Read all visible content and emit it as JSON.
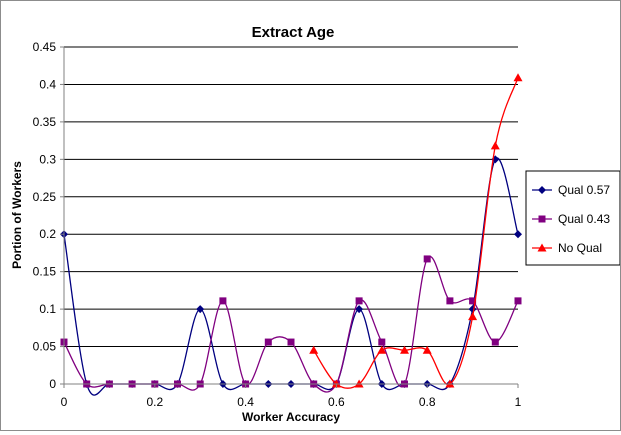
{
  "chart_data": {
    "type": "line",
    "title": "Extract Age",
    "xlabel": "Worker Accuracy",
    "ylabel": "Portion of Workers",
    "xlim": [
      0,
      1
    ],
    "ylim": [
      0,
      0.45
    ],
    "x_ticks": [
      0,
      0.2,
      0.4,
      0.6,
      0.8,
      1
    ],
    "y_ticks": [
      0,
      0.05,
      0.1,
      0.15,
      0.2,
      0.25,
      0.3,
      0.35,
      0.4,
      0.45
    ],
    "x_tick_labels": [
      "0",
      "0.2",
      "0.4",
      "0.6",
      "0.8",
      "1"
    ],
    "y_tick_labels": [
      "0",
      "0.05",
      "0.1",
      "0.15",
      "0.2",
      "0.25",
      "0.3",
      "0.35",
      "0.4",
      "0.45"
    ],
    "grid": "horizontal",
    "smooth": true,
    "legend_position": "right",
    "series": [
      {
        "name": "Qual 0.57",
        "color": "#000080",
        "marker": "diamond",
        "x": [
          0,
          0.05,
          0.1,
          0.15,
          0.2,
          0.25,
          0.3,
          0.35,
          0.4,
          0.45,
          0.5,
          0.55,
          0.6,
          0.65,
          0.7,
          0.75,
          0.8,
          0.85,
          0.9,
          0.95,
          1
        ],
        "y": [
          0.2,
          0,
          0,
          0,
          0,
          0,
          0.1,
          0,
          0,
          0,
          0,
          0,
          0,
          0.1,
          0,
          0,
          0,
          0,
          0.1,
          0.3,
          0.2
        ]
      },
      {
        "name": "Qual 0.43",
        "color": "#800080",
        "marker": "square",
        "x": [
          0,
          0.05,
          0.1,
          0.15,
          0.2,
          0.25,
          0.3,
          0.35,
          0.4,
          0.45,
          0.5,
          0.55,
          0.6,
          0.65,
          0.7,
          0.75,
          0.8,
          0.85,
          0.9,
          0.95,
          1
        ],
        "y": [
          0.056,
          0,
          0,
          0,
          0,
          0,
          0,
          0.111,
          0,
          0.056,
          0.056,
          0,
          0,
          0.111,
          0.056,
          0,
          0.167,
          0.111,
          0.111,
          0.056,
          0.111
        ]
      },
      {
        "name": "No Qual",
        "color": "#ff0000",
        "marker": "triangle",
        "x": [
          0.55,
          0.6,
          0.65,
          0.7,
          0.75,
          0.8,
          0.85,
          0.9,
          0.95,
          1
        ],
        "y": [
          0.045,
          0,
          0,
          0.045,
          0.045,
          0.045,
          0,
          0.09,
          0.318,
          0.409
        ]
      }
    ]
  }
}
